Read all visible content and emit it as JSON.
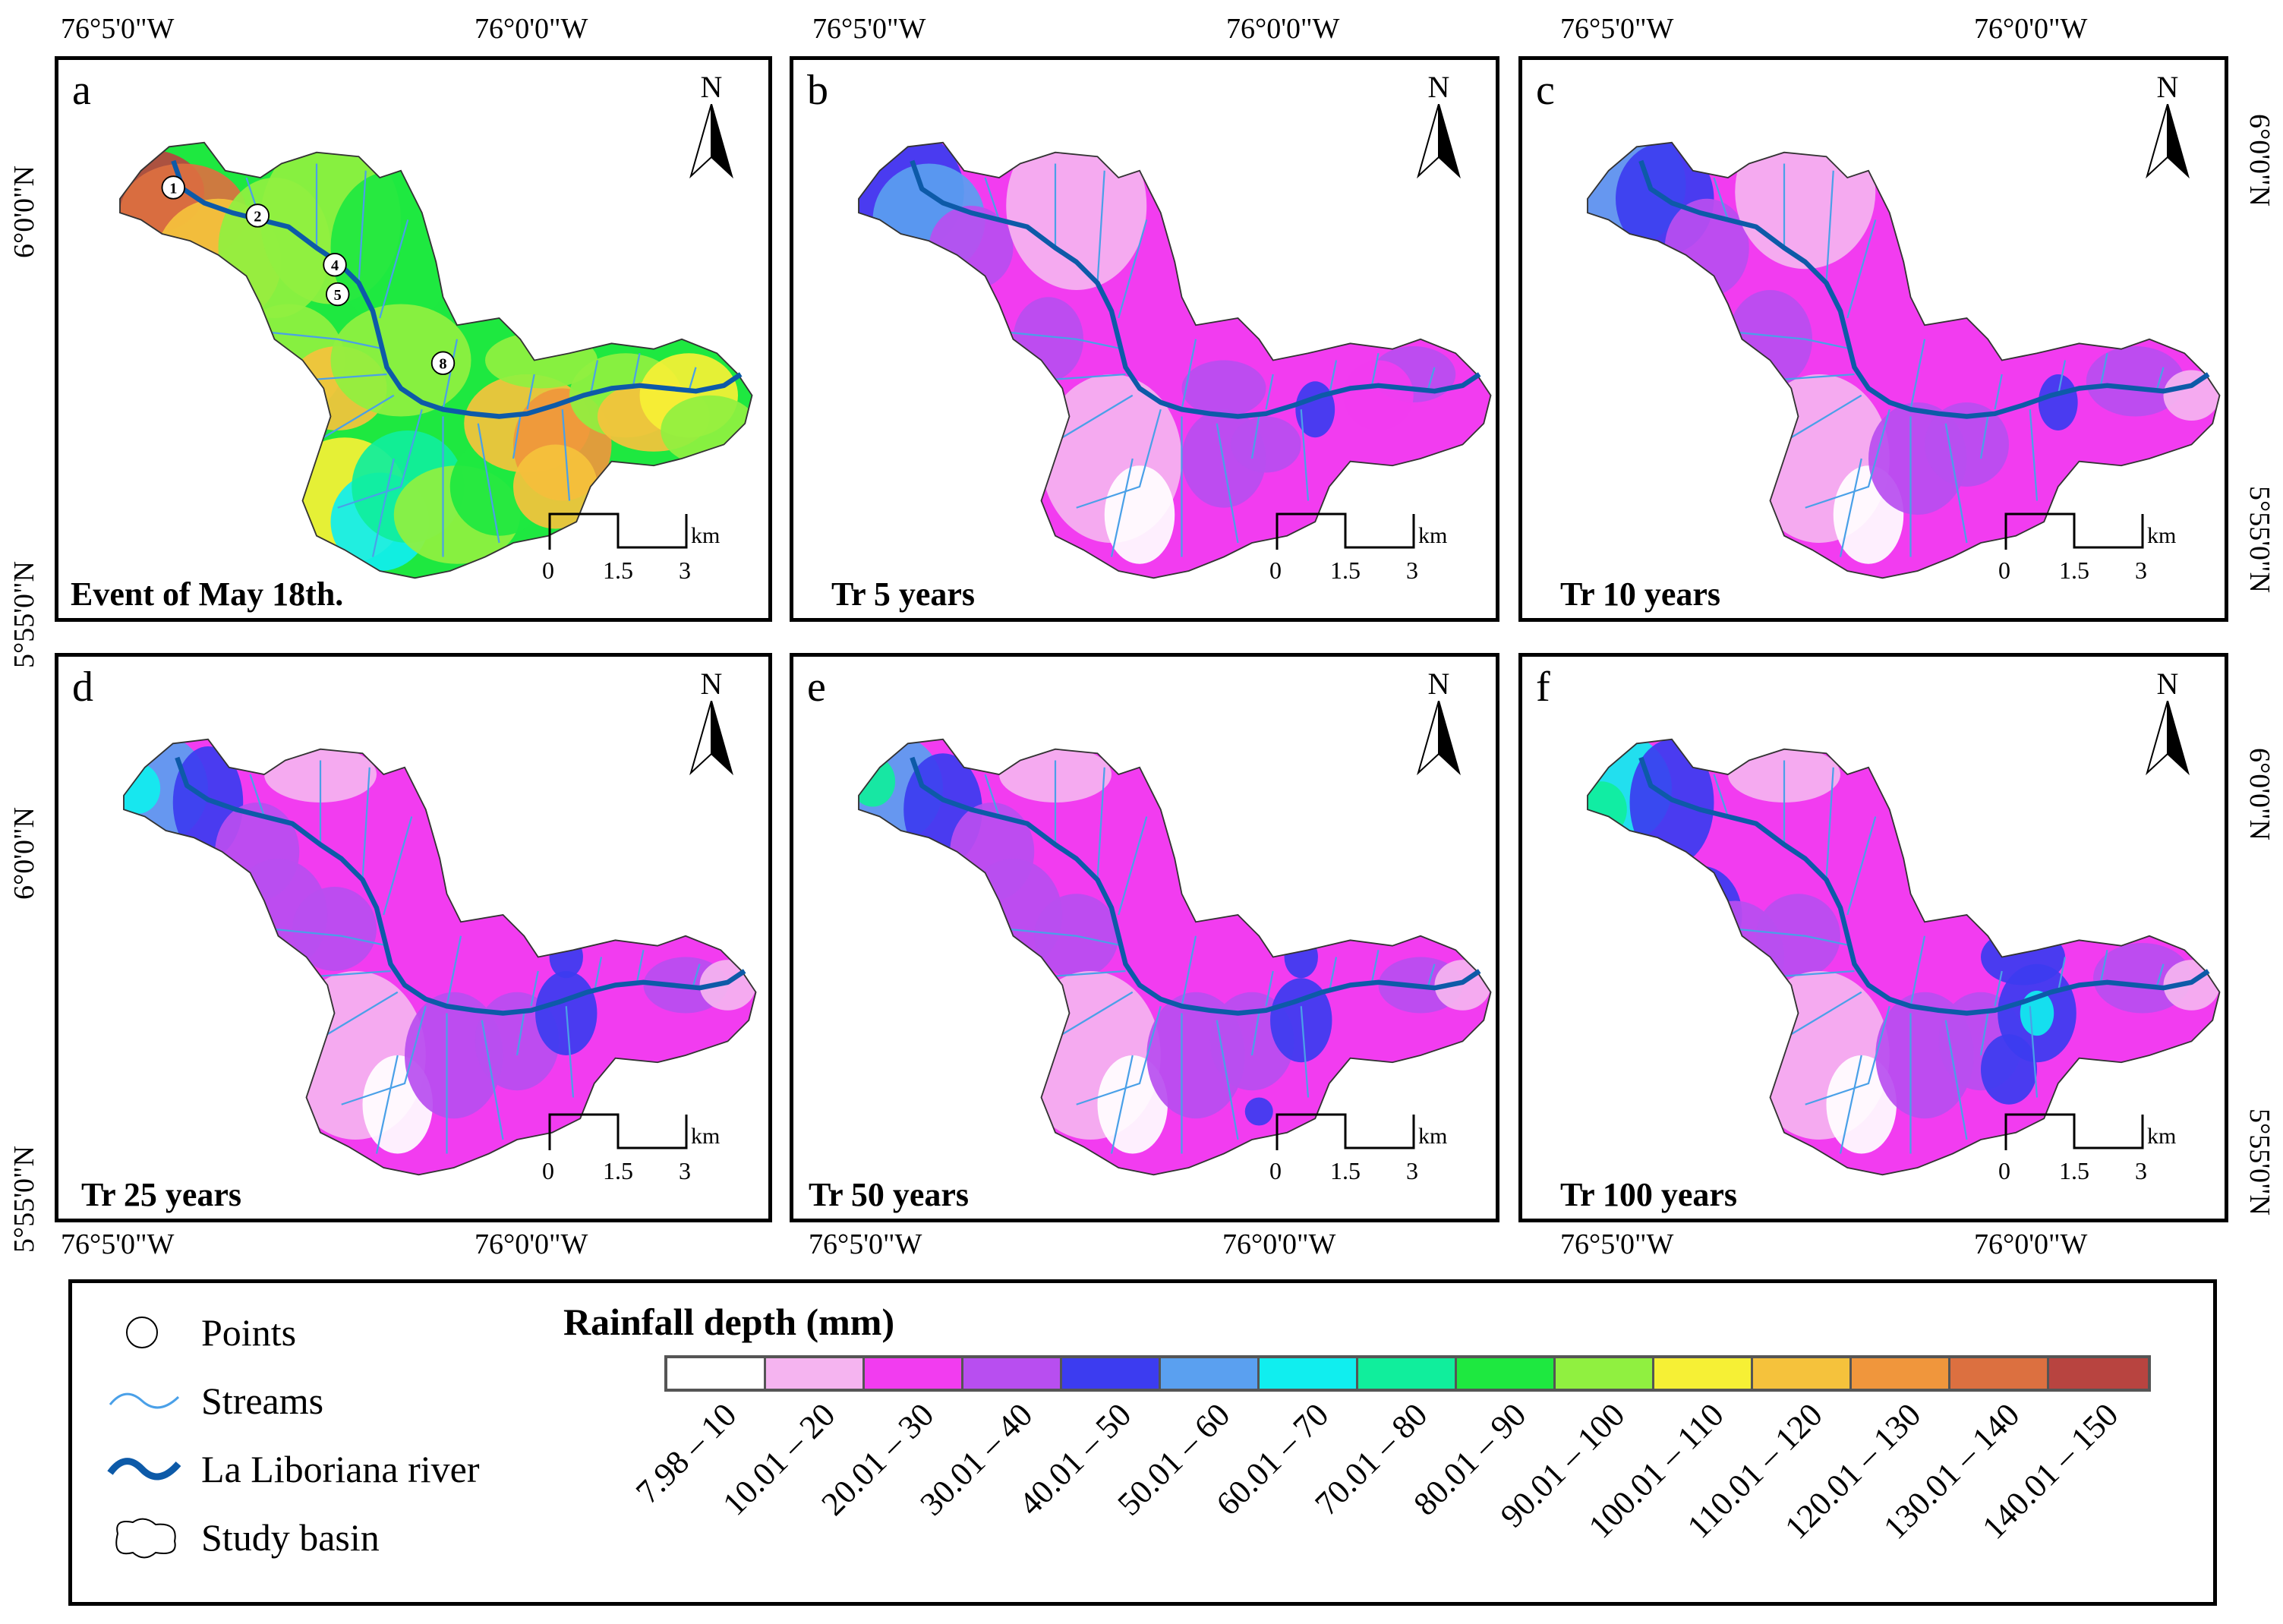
{
  "coords": {
    "lon_left": "76°5'0\"W",
    "lon_right": "76°0'0\"W",
    "lat_top": "6°0'0\"N",
    "lat_bottom": "5°55'0\"N"
  },
  "panels": [
    {
      "letter": "a",
      "title": "Event of May 18th.",
      "scheme": "event"
    },
    {
      "letter": "b",
      "title": "Tr 5 years",
      "scheme": "tr5"
    },
    {
      "letter": "c",
      "title": "Tr 10 years",
      "scheme": "tr10"
    },
    {
      "letter": "d",
      "title": "Tr 25 years",
      "scheme": "tr25"
    },
    {
      "letter": "e",
      "title": "Tr 50 years",
      "scheme": "tr50"
    },
    {
      "letter": "f",
      "title": "Tr 100 years",
      "scheme": "tr100"
    }
  ],
  "north_label": "N",
  "scale_bar": {
    "unit": "km",
    "ticks": [
      "0",
      "1.5",
      "3"
    ]
  },
  "points": [
    "1",
    "2",
    "4",
    "5",
    "8"
  ],
  "legend": {
    "items": [
      {
        "label": "Points",
        "icon": "circle-icon"
      },
      {
        "label": "Streams",
        "icon": "stream-line-icon"
      },
      {
        "label": "La Liboriana river",
        "icon": "river-line-icon"
      },
      {
        "label": "Study basin",
        "icon": "basin-outline-icon"
      }
    ],
    "rainfall_title": "Rainfall depth (mm)",
    "classes": [
      {
        "label": "7.98 – 10",
        "color": "#ffffff"
      },
      {
        "label": "10.01 – 20",
        "color": "#f5b4f0"
      },
      {
        "label": "20.01 – 30",
        "color": "#f23cf0"
      },
      {
        "label": "30.01 – 40",
        "color": "#b84ef0"
      },
      {
        "label": "40.01 – 50",
        "color": "#3c3cf0"
      },
      {
        "label": "50.01 – 60",
        "color": "#5aa0f0"
      },
      {
        "label": "60.01 – 70",
        "color": "#10eeef"
      },
      {
        "label": "70.01 – 80",
        "color": "#10ee9c"
      },
      {
        "label": "80.01 – 90",
        "color": "#1ee840"
      },
      {
        "label": "90.01 – 100",
        "color": "#90f040"
      },
      {
        "label": "100.01 – 110",
        "color": "#f6f035"
      },
      {
        "label": "110.01 – 120",
        "color": "#f5c23c"
      },
      {
        "label": "120.01 – 130",
        "color": "#f0963c"
      },
      {
        "label": "130.01 – 140",
        "color": "#dc7040"
      },
      {
        "label": "140.01 – 150",
        "color": "#b84440"
      }
    ]
  }
}
